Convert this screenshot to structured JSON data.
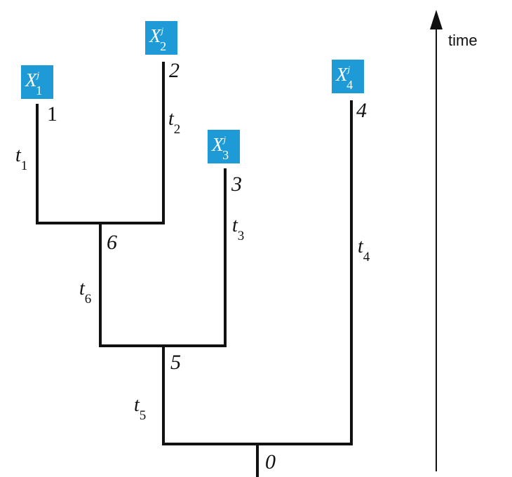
{
  "tree": {
    "leaves": [
      {
        "id": "1",
        "var": "X",
        "sup": "j",
        "sub": "1",
        "node_label": "1"
      },
      {
        "id": "2",
        "var": "X",
        "sup": "j",
        "sub": "2",
        "node_label": "2"
      },
      {
        "id": "3",
        "var": "X",
        "sup": "j",
        "sub": "3",
        "node_label": "3"
      },
      {
        "id": "4",
        "var": "X",
        "sup": "j",
        "sub": "4",
        "node_label": "4"
      }
    ],
    "internal_nodes": [
      {
        "id": "6",
        "node_label": "6"
      },
      {
        "id": "5",
        "node_label": "5"
      },
      {
        "id": "0",
        "node_label": "0"
      }
    ],
    "branches": [
      {
        "id": "t1",
        "symbol": "t",
        "sub": "1"
      },
      {
        "id": "t2",
        "symbol": "t",
        "sub": "2"
      },
      {
        "id": "t3",
        "symbol": "t",
        "sub": "3"
      },
      {
        "id": "t4",
        "symbol": "t",
        "sub": "4"
      },
      {
        "id": "t5",
        "symbol": "t",
        "sub": "5"
      },
      {
        "id": "t6",
        "symbol": "t",
        "sub": "6"
      }
    ]
  },
  "time_axis": {
    "label": "time"
  },
  "colors": {
    "leaf_box": "#1e9bd7",
    "leaf_text": "#ffffff",
    "lines": "#111111"
  }
}
